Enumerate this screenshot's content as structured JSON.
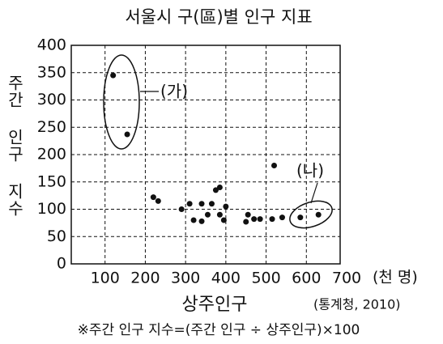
{
  "chart_data": {
    "type": "scatter",
    "title": "서울시 구(區)별 인구 지표",
    "x_label": "상주인구",
    "x_unit": "(천 명)",
    "y_label": "주간 인구 지수",
    "source": "(통계청, 2010)",
    "footnote": "※주간 인구 지수=(주간 인구 ÷ 상주인구)×100",
    "annotations": [
      "(가)",
      "(나)"
    ],
    "x": [
      120,
      155,
      220,
      232,
      290,
      310,
      320,
      340,
      340,
      355,
      365,
      375,
      385,
      385,
      395,
      400,
      450,
      455,
      470,
      485,
      515,
      520,
      540,
      585,
      630
    ],
    "values": [
      345,
      237,
      122,
      115,
      100,
      110,
      80,
      110,
      78,
      90,
      110,
      135,
      140,
      90,
      80,
      105,
      77,
      90,
      82,
      82,
      82,
      180,
      85,
      85,
      90
    ],
    "color": "#111111",
    "xlim": [
      0,
      700
    ],
    "xticks": [
      100,
      200,
      300,
      400,
      500,
      600,
      700
    ],
    "ylim": [
      0,
      400
    ],
    "yticks": [
      0,
      50,
      100,
      150,
      200,
      250,
      300,
      350,
      400
    ],
    "grid": true
  }
}
